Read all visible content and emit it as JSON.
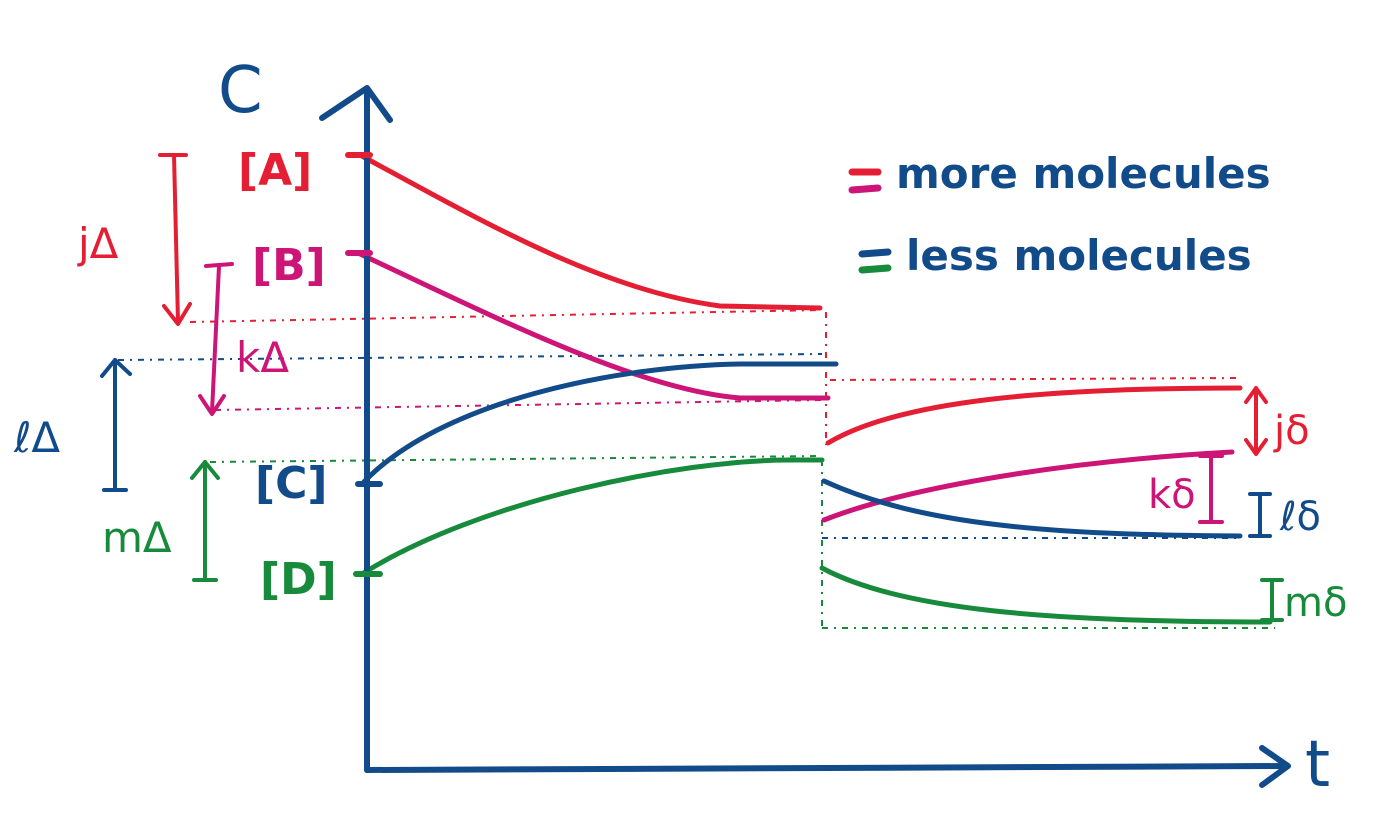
{
  "axes": {
    "y_label": "C",
    "x_label": "t"
  },
  "species": [
    {
      "key": "A",
      "label": "[A]",
      "color": "#e51f33"
    },
    {
      "key": "B",
      "label": "[B]",
      "color": "#cc1577"
    },
    {
      "key": "C",
      "label": "[C]",
      "color": "#124b8a"
    },
    {
      "key": "D",
      "label": "[D]",
      "color": "#178a3c"
    }
  ],
  "legend": {
    "more": "more molecules",
    "less": "less molecules"
  },
  "deltas_initial": {
    "A": "jΔ",
    "B": "kΔ",
    "C": "ℓΔ",
    "D": "mΔ"
  },
  "deltas_shift": {
    "A": "jδ",
    "B": "kδ",
    "C": "ℓδ",
    "D": "mδ"
  },
  "colors": {
    "A": "#e51f33",
    "B": "#cc1577",
    "C": "#124b8a",
    "D": "#178a3c",
    "axis": "#124b8a"
  }
}
